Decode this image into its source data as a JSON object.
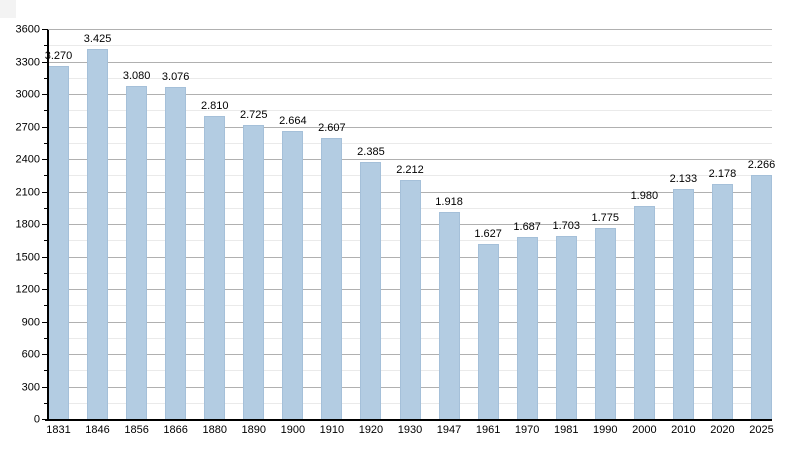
{
  "chart_data": {
    "type": "bar",
    "title": "",
    "xlabel": "",
    "ylabel": "",
    "categories": [
      "1831",
      "1846",
      "1856",
      "1866",
      "1880",
      "1890",
      "1900",
      "1910",
      "1920",
      "1930",
      "1947",
      "1961",
      "1970",
      "1981",
      "1990",
      "2000",
      "2010",
      "2020",
      "2025"
    ],
    "values": [
      3270,
      3425,
      3080,
      3076,
      2810,
      2725,
      2664,
      2607,
      2385,
      2212,
      1918,
      1627,
      1687,
      1703,
      1775,
      1980,
      2133,
      2178,
      2266
    ],
    "value_labels": [
      "3.270",
      "3.425",
      "3.080",
      "3.076",
      "2.810",
      "2.725",
      "2.664",
      "2.607",
      "2.385",
      "2.212",
      "1.918",
      "1.627",
      "1.687",
      "1.703",
      "1.775",
      "1.980",
      "2.133",
      "2.178",
      "2.266"
    ],
    "ylim": [
      0,
      3600
    ],
    "y_tick_labels": [
      "0",
      "300",
      "600",
      "900",
      "1200",
      "1500",
      "1800",
      "2100",
      "2400",
      "2700",
      "3000",
      "3300",
      "3600"
    ],
    "major_tick_step": 300,
    "minor_tick_step": 150,
    "grid": "horizontal, major and minor lines",
    "legend": "none",
    "colors": {
      "bar_fill": "#b3cce2",
      "bar_border": "#a5c0d9",
      "grid_major": "#b0b0b0",
      "grid_minor": "#eaeaea",
      "axis": "#000000",
      "label_text": "#000000",
      "background": "#ffffff"
    }
  }
}
